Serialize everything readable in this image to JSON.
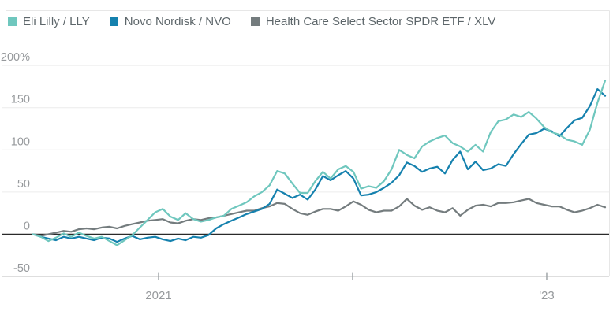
{
  "legend": {
    "items": [
      {
        "label": "Eli Lilly / LLY",
        "color": "#6FC7BE"
      },
      {
        "label": "Novo Nordisk / NVO",
        "color": "#1581AE"
      },
      {
        "label": "Health Care Select Sector SPDR ETF / XLV",
        "color": "#747C7E"
      }
    ]
  },
  "chart_data": {
    "type": "line",
    "title": "",
    "xlabel": "",
    "ylabel": "",
    "grid": "horizontal",
    "legend_position": "top-left",
    "y_axis": {
      "unit": "%",
      "range": [
        -53,
        215
      ],
      "ticks": [
        {
          "value": 200,
          "label": "200%"
        },
        {
          "value": 150,
          "label": "150"
        },
        {
          "value": 100,
          "label": "100"
        },
        {
          "value": 50,
          "label": "50"
        },
        {
          "value": 0,
          "label": "0"
        },
        {
          "value": -50,
          "label": "-50"
        }
      ],
      "zero_line_color": "#2a2a2a"
    },
    "x_axis": {
      "ticks": [
        {
          "pos": 0.2193,
          "label": "2021"
        },
        {
          "pos": 0.5586,
          "label": ""
        },
        {
          "pos": 0.8979,
          "label": "'23"
        }
      ]
    },
    "series": [
      {
        "name": "Eli Lilly / LLY",
        "ticker": "LLY",
        "color": "#6FC7BE",
        "values": [
          0,
          -3,
          -8,
          -4,
          1,
          -3,
          2,
          -2,
          -5,
          -3,
          -8,
          -13,
          -7,
          -1,
          8,
          17,
          26,
          30,
          21,
          17,
          25,
          18,
          15,
          17,
          20,
          22,
          30,
          34,
          38,
          45,
          50,
          58,
          75,
          72,
          60,
          49,
          49,
          63,
          74,
          66,
          77,
          81,
          74,
          54,
          57,
          55,
          63,
          77,
          100,
          94,
          90,
          104,
          110,
          114,
          117,
          108,
          104,
          98,
          106,
          98,
          121,
          134,
          136,
          142,
          139,
          145,
          137,
          127,
          121,
          118,
          112,
          110,
          106,
          124,
          156,
          182
        ]
      },
      {
        "name": "Novo Nordisk / NVO",
        "ticker": "NVO",
        "color": "#1581AE",
        "values": [
          0,
          -3,
          -5,
          -7,
          -3,
          -5,
          -3,
          -5,
          -7,
          -4,
          -5,
          -9,
          -5,
          -2,
          -6,
          -4,
          -3,
          -6,
          -8,
          -5,
          -7,
          -3,
          -4,
          -1,
          7,
          12,
          16,
          20,
          24,
          27,
          30,
          36,
          53,
          48,
          43,
          47,
          41,
          53,
          69,
          64,
          70,
          75,
          66,
          46,
          47,
          50,
          55,
          61,
          70,
          85,
          81,
          74,
          78,
          80,
          72,
          88,
          98,
          77,
          86,
          76,
          78,
          83,
          81,
          95,
          107,
          118,
          120,
          125,
          122,
          116,
          126,
          135,
          138,
          152,
          172,
          164
        ]
      },
      {
        "name": "Health Care Select Sector SPDR ETF / XLV",
        "ticker": "XLV",
        "color": "#747C7E",
        "values": [
          0,
          -2,
          0,
          2,
          4,
          3,
          6,
          7,
          6,
          8,
          9,
          7,
          10,
          12,
          14,
          16,
          17,
          18,
          14,
          13,
          16,
          18,
          17,
          19,
          20,
          22,
          24,
          26,
          28,
          28,
          31,
          33,
          37,
          36,
          30,
          25,
          23,
          27,
          30,
          30,
          28,
          33,
          39,
          35,
          29,
          26,
          28,
          28,
          33,
          42,
          34,
          29,
          32,
          28,
          26,
          31,
          22,
          29,
          34,
          35,
          33,
          37,
          37,
          38,
          40,
          42,
          37,
          35,
          33,
          33,
          29,
          26,
          28,
          31,
          35,
          32
        ]
      }
    ]
  },
  "colors": {
    "legend_text": "#5d666a",
    "axis_label": "#96999c",
    "gridline": "#ececec",
    "border": "#e7e7e7",
    "bottom_axis": "#d4d4d4",
    "tick": "#9aa0a3"
  }
}
